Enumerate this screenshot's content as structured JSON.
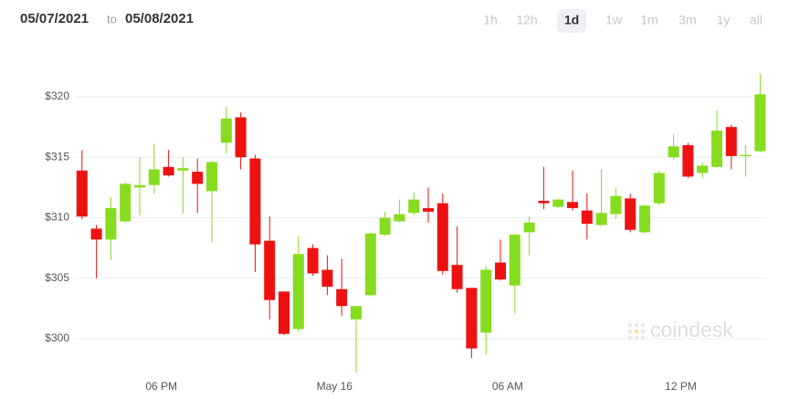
{
  "header": {
    "start_date": "05/07/2021",
    "to": "to",
    "end_date": "05/08/2021"
  },
  "tabs": [
    "1h",
    "12h",
    "1d",
    "1w",
    "1m",
    "3m",
    "1y",
    "all"
  ],
  "active_tab": 2,
  "chart_data": {
    "type": "candlestick",
    "watermark": "coindesk",
    "up_color": "#86dc1e",
    "down_color": "#ee1111",
    "grid": true,
    "xlim": [
      14.75,
      39
    ],
    "xticks": [
      {
        "value": 18,
        "label": "06 PM"
      },
      {
        "value": 24,
        "label": "May 16"
      },
      {
        "value": 30,
        "label": "06 AM"
      },
      {
        "value": 36,
        "label": "12 PM"
      }
    ],
    "ylim": [
      297,
      323.5
    ],
    "yticks": [
      {
        "value": 300,
        "label": "$300"
      },
      {
        "value": 305,
        "label": "$305"
      },
      {
        "value": 310,
        "label": "$310"
      },
      {
        "value": 315,
        "label": "$315"
      },
      {
        "value": 320,
        "label": "$320"
      }
    ],
    "x": [
      15.25,
      15.75,
      16.25,
      16.75,
      17.25,
      17.75,
      18.25,
      18.75,
      19.25,
      19.75,
      20.25,
      20.75,
      21.25,
      21.75,
      22.25,
      22.75,
      23.25,
      23.75,
      24.25,
      24.75,
      25.25,
      25.75,
      26.25,
      26.75,
      27.25,
      27.75,
      28.25,
      28.75,
      29.25,
      29.75,
      30.25,
      30.75,
      31.25,
      31.75,
      32.25,
      32.75,
      33.25,
      33.75,
      34.25,
      34.75,
      35.25,
      35.75,
      36.25,
      36.75,
      37.25,
      37.75,
      38.25,
      38.75
    ],
    "open": [
      313.9,
      309.1,
      308.2,
      309.7,
      312.5,
      312.7,
      314.2,
      313.9,
      313.8,
      312.2,
      316.2,
      318.3,
      314.9,
      308.1,
      303.9,
      300.8,
      307.5,
      305.7,
      304.1,
      301.6,
      303.6,
      308.6,
      309.7,
      310.4,
      310.8,
      311.2,
      306.1,
      304.2,
      300.5,
      306.3,
      304.4,
      308.8,
      311.4,
      310.9,
      311.3,
      310.6,
      309.4,
      310.3,
      311.6,
      308.8,
      311.2,
      315.0,
      316.0,
      313.7,
      314.2,
      317.5,
      315.1,
      315.5
    ],
    "high": [
      315.6,
      309.4,
      311.7,
      312.9,
      315.0,
      316.1,
      315.6,
      315.0,
      314.9,
      314.7,
      319.2,
      318.7,
      315.2,
      310.1,
      303.9,
      308.5,
      307.8,
      306.9,
      306.6,
      302.7,
      308.8,
      310.5,
      311.5,
      312.1,
      312.5,
      312.0,
      309.3,
      304.2,
      306.0,
      308.2,
      308.7,
      310.1,
      314.2,
      311.6,
      313.9,
      312.0,
      314.0,
      312.4,
      312.0,
      311.1,
      313.9,
      316.9,
      316.2,
      314.6,
      318.9,
      317.7,
      316.0,
      321.9
    ],
    "low": [
      309.9,
      305.0,
      306.5,
      309.6,
      310.2,
      312.0,
      313.4,
      310.3,
      310.4,
      308.0,
      315.3,
      314.0,
      305.5,
      301.6,
      300.3,
      300.6,
      305.2,
      303.6,
      301.9,
      297.2,
      303.5,
      308.5,
      309.6,
      310.2,
      309.6,
      305.3,
      303.8,
      298.4,
      298.7,
      304.8,
      302.1,
      306.9,
      310.7,
      310.8,
      310.6,
      308.2,
      309.3,
      309.9,
      308.8,
      308.7,
      311.0,
      314.8,
      313.3,
      313.3,
      314.1,
      314.0,
      313.4,
      315.4
    ],
    "close": [
      310.1,
      308.2,
      310.8,
      312.8,
      312.7,
      314.0,
      313.5,
      314.1,
      312.8,
      314.6,
      318.2,
      315.0,
      307.8,
      303.2,
      300.4,
      307.0,
      305.4,
      304.3,
      302.7,
      302.7,
      308.7,
      310.0,
      310.3,
      311.5,
      310.5,
      305.6,
      304.1,
      299.2,
      305.7,
      304.9,
      308.6,
      309.6,
      311.2,
      311.5,
      310.8,
      309.5,
      310.4,
      311.8,
      309.0,
      311.0,
      313.7,
      315.9,
      313.4,
      314.3,
      317.2,
      315.1,
      315.2,
      320.2
    ]
  }
}
